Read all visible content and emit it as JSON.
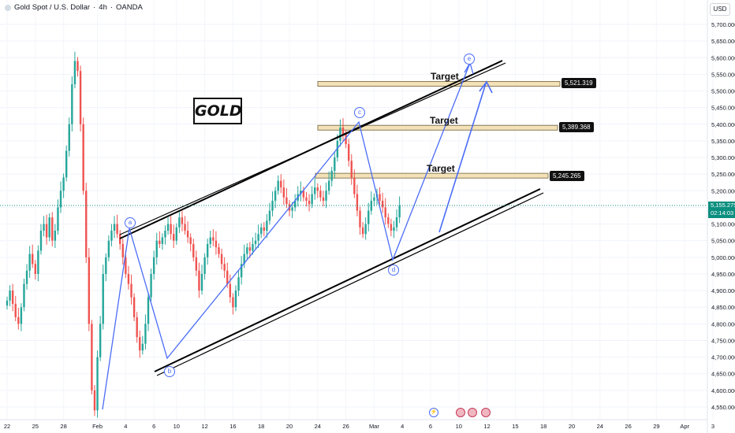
{
  "header": {
    "symbol": "Gold Spot / U.S. Dollar",
    "timeframe": "4h",
    "exchange": "OANDA",
    "currency": "USD",
    "status_dot_color": "#d2dde3"
  },
  "annotations": {
    "gold_label": "GOLD",
    "targets": [
      {
        "label": "Target",
        "price": "5,521.319",
        "value": 5521.319
      },
      {
        "label": "Target",
        "price": "5,389.368",
        "value": 5389.368
      },
      {
        "label": "Target",
        "price": "5,245.265",
        "value": 5245.265
      }
    ],
    "waves": [
      "a",
      "b",
      "c",
      "d",
      "e"
    ],
    "current_price": "5,155.275",
    "countdown": "02:14:03"
  },
  "colors": {
    "bull": "#26a69a",
    "bear": "#ef5350",
    "wave": "#4a6cf7",
    "channel": "#000000",
    "target_zone": "#f3e2b8",
    "price_badge": "#0b8f7f"
  },
  "event_icons": [
    "flash-icon",
    "us-flag-icon",
    "us-flag-icon",
    "us-flag-icon"
  ],
  "chart_data": {
    "type": "candlestick",
    "title": "Gold Spot / U.S. Dollar · 4h · OANDA",
    "y_axis": {
      "label": "USD",
      "min": 4530,
      "max": 5735,
      "ticks": [
        {
          "value": 5700,
          "label": "5,700.000"
        },
        {
          "value": 5650,
          "label": "5,650.000"
        },
        {
          "value": 5600,
          "label": "5,600.000"
        },
        {
          "value": 5550,
          "label": "5,550.000"
        },
        {
          "value": 5500,
          "label": "5,500.000"
        },
        {
          "value": 5450,
          "label": "5,450.000"
        },
        {
          "value": 5400,
          "label": "5,400.000"
        },
        {
          "value": 5350,
          "label": "5,350.000"
        },
        {
          "value": 5300,
          "label": "5,300.000"
        },
        {
          "value": 5250,
          "label": "5,250.000"
        },
        {
          "value": 5200,
          "label": "5,200.000"
        },
        {
          "value": 5150,
          "label": "5,150.000"
        },
        {
          "value": 5100,
          "label": "5,100.000"
        },
        {
          "value": 5050,
          "label": "5,050.000"
        },
        {
          "value": 5000,
          "label": "5,000.000"
        },
        {
          "value": 4950,
          "label": "4,950.000"
        },
        {
          "value": 4900,
          "label": "4,900.000"
        },
        {
          "value": 4850,
          "label": "4,850.000"
        },
        {
          "value": 4800,
          "label": "4,800.000"
        },
        {
          "value": 4750,
          "label": "4,750.000"
        },
        {
          "value": 4700,
          "label": "4,700.000"
        },
        {
          "value": 4650,
          "label": "4,650.000"
        },
        {
          "value": 4600,
          "label": "4,600.000"
        },
        {
          "value": 4550,
          "label": "4,550.000"
        }
      ]
    },
    "x_axis": {
      "ticks": [
        {
          "bar": 0,
          "label": "22"
        },
        {
          "bar": 10,
          "label": "25"
        },
        {
          "bar": 20,
          "label": "28"
        },
        {
          "bar": 32,
          "label": "Feb"
        },
        {
          "bar": 42,
          "label": "4"
        },
        {
          "bar": 52,
          "label": "6"
        },
        {
          "bar": 60,
          "label": "10"
        },
        {
          "bar": 70,
          "label": "12"
        },
        {
          "bar": 80,
          "label": "16"
        },
        {
          "bar": 90,
          "label": "18"
        },
        {
          "bar": 100,
          "label": "20"
        },
        {
          "bar": 110,
          "label": "24"
        },
        {
          "bar": 120,
          "label": "26"
        },
        {
          "bar": 130,
          "label": "Mar"
        },
        {
          "bar": 140,
          "label": "4"
        },
        {
          "bar": 150,
          "label": "6"
        },
        {
          "bar": 160,
          "label": "10"
        },
        {
          "bar": 170,
          "label": "12"
        },
        {
          "bar": 180,
          "label": "15"
        },
        {
          "bar": 190,
          "label": "18"
        },
        {
          "bar": 200,
          "label": "20"
        },
        {
          "bar": 210,
          "label": "24"
        },
        {
          "bar": 220,
          "label": "26"
        },
        {
          "bar": 230,
          "label": "29"
        },
        {
          "bar": 240,
          "label": "Apr"
        },
        {
          "bar": 250,
          "label": "3"
        }
      ]
    },
    "candles_close": [
      4870,
      4900,
      4860,
      4820,
      4800,
      4850,
      4920,
      4960,
      5010,
      4980,
      4950,
      5020,
      5080,
      5100,
      5060,
      5120,
      5050,
      5080,
      5150,
      5200,
      5240,
      5320,
      5400,
      5520,
      5590,
      5560,
      5400,
      5200,
      5000,
      4800,
      4600,
      4540,
      4700,
      4800,
      4950,
      5000,
      5050,
      5080,
      5100,
      5070,
      5040,
      5000,
      4950,
      4920,
      4880,
      4820,
      4760,
      4720,
      4740,
      4800,
      4880,
      4950,
      5000,
      5050,
      5040,
      5060,
      5080,
      5100,
      5070,
      5050,
      5090,
      5120,
      5100,
      5080,
      5060,
      5040,
      5000,
      4960,
      4900,
      4950,
      5000,
      5040,
      5060,
      5050,
      5030,
      5010,
      4980,
      4960,
      4920,
      4880,
      4850,
      4900,
      4940,
      4980,
      5010,
      5030,
      5020,
      5040,
      5050,
      5070,
      5090,
      5080,
      5110,
      5140,
      5170,
      5200,
      5230,
      5210,
      5180,
      5160,
      5140,
      5150,
      5170,
      5190,
      5200,
      5180,
      5170,
      5160,
      5190,
      5210,
      5200,
      5180,
      5170,
      5200,
      5230,
      5260,
      5300,
      5350,
      5390,
      5370,
      5340,
      5290,
      5240,
      5190,
      5140,
      5090,
      5070,
      5100,
      5140,
      5170,
      5180,
      5190,
      5170,
      5150,
      5120,
      5100,
      5080,
      5090,
      5120,
      5155
    ]
  }
}
